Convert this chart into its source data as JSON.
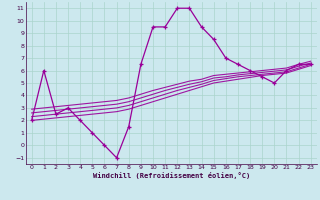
{
  "xlabel": "Windchill (Refroidissement éolien,°C)",
  "bg_color": "#cce8ee",
  "grid_color": "#aad4cc",
  "line_color": "#990099",
  "xlim": [
    -0.5,
    23.5
  ],
  "ylim": [
    -1.5,
    11.5
  ],
  "xticks": [
    0,
    1,
    2,
    3,
    4,
    5,
    6,
    7,
    8,
    9,
    10,
    11,
    12,
    13,
    14,
    15,
    16,
    17,
    18,
    19,
    20,
    21,
    22,
    23
  ],
  "yticks": [
    -1,
    0,
    1,
    2,
    3,
    4,
    5,
    6,
    7,
    8,
    9,
    10,
    11
  ],
  "main_line_x": [
    0,
    1,
    2,
    3,
    4,
    5,
    6,
    7,
    8,
    9,
    10,
    11,
    12,
    13,
    14,
    15,
    16,
    17,
    18,
    19,
    20,
    21,
    22,
    23
  ],
  "main_line_y": [
    2,
    6,
    2.5,
    3,
    2,
    1,
    0,
    -1,
    1.5,
    6.5,
    9.5,
    9.5,
    11,
    11,
    9.5,
    8.5,
    7,
    6.5,
    6,
    5.5,
    5,
    6,
    6.5,
    6.5
  ],
  "band_lines_y": [
    [
      2.0,
      2.1,
      2.2,
      2.3,
      2.4,
      2.5,
      2.6,
      2.7,
      2.9,
      3.2,
      3.5,
      3.8,
      4.1,
      4.4,
      4.7,
      5.0,
      5.15,
      5.3,
      5.45,
      5.6,
      5.7,
      5.8,
      6.1,
      6.4
    ],
    [
      2.3,
      2.4,
      2.5,
      2.6,
      2.7,
      2.8,
      2.9,
      3.0,
      3.2,
      3.5,
      3.8,
      4.1,
      4.4,
      4.65,
      4.9,
      5.2,
      5.35,
      5.5,
      5.6,
      5.7,
      5.8,
      5.9,
      6.2,
      6.5
    ],
    [
      2.6,
      2.7,
      2.8,
      2.9,
      3.0,
      3.1,
      3.2,
      3.3,
      3.5,
      3.8,
      4.1,
      4.4,
      4.65,
      4.9,
      5.1,
      5.4,
      5.5,
      5.65,
      5.75,
      5.85,
      5.95,
      6.05,
      6.35,
      6.6
    ],
    [
      2.9,
      3.0,
      3.1,
      3.2,
      3.3,
      3.4,
      3.5,
      3.6,
      3.8,
      4.1,
      4.4,
      4.65,
      4.9,
      5.15,
      5.3,
      5.6,
      5.7,
      5.8,
      5.9,
      6.0,
      6.1,
      6.2,
      6.5,
      6.75
    ]
  ]
}
